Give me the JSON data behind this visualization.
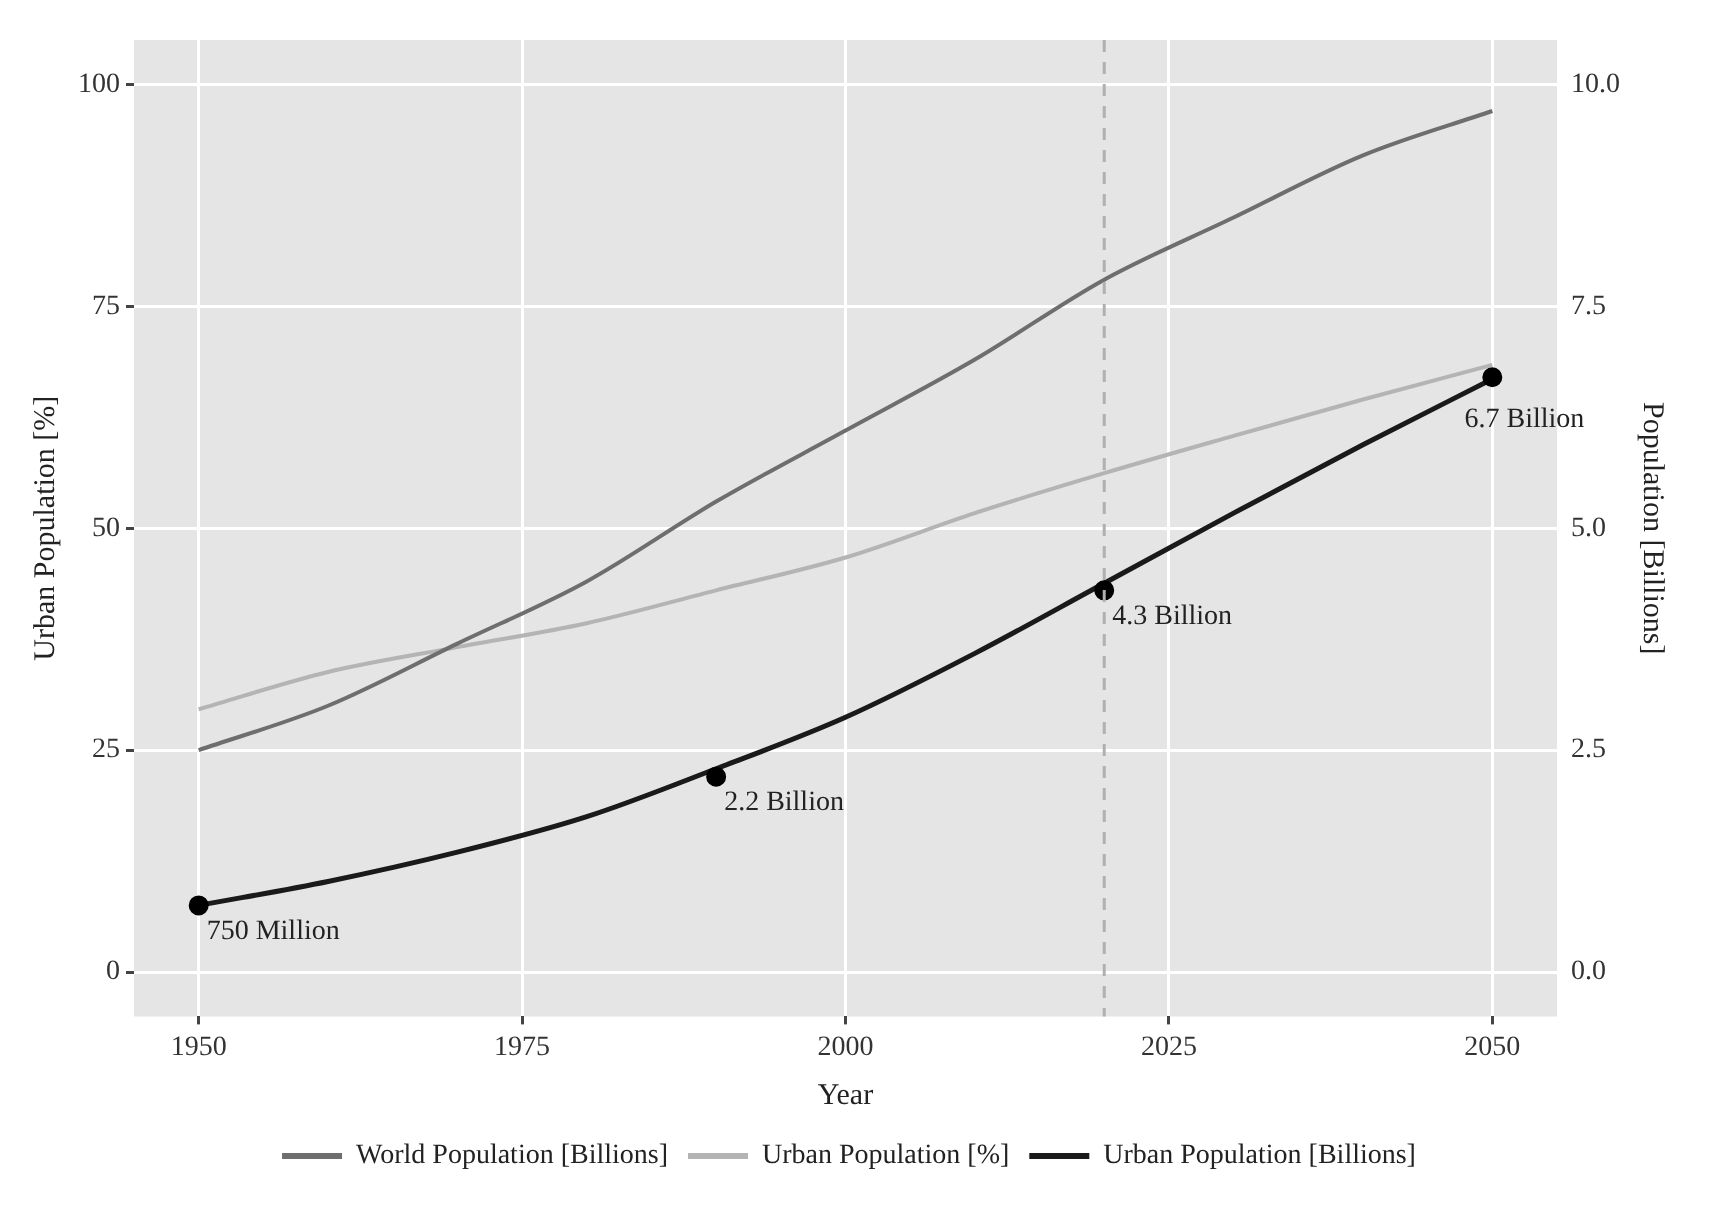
{
  "chart_data": {
    "type": "line",
    "xlabel": "Year",
    "ylabel": "Urban Population [%]",
    "y2label": "Population [Billions]",
    "xlim": [
      1945,
      2055
    ],
    "xticks": [
      1950,
      1975,
      2000,
      2025,
      2050
    ],
    "ylim": [
      -5,
      105
    ],
    "yticks": [
      0,
      25,
      50,
      75,
      100
    ],
    "y2lim": [
      -0.5,
      10.5
    ],
    "y2ticks": [
      {
        "value": 0,
        "label": "0.0"
      },
      {
        "value": 2.5,
        "label": "2.5"
      },
      {
        "value": 5,
        "label": "5.0"
      },
      {
        "value": 7.5,
        "label": "7.5"
      },
      {
        "value": 10,
        "label": "10.0"
      }
    ],
    "x": [
      1950,
      1960,
      1970,
      1980,
      1990,
      2000,
      2010,
      2020,
      2030,
      2040,
      2050
    ],
    "series": [
      {
        "name": "World Population [Billions]",
        "color": "#6e6e6e",
        "axis": "y2",
        "values": [
          2.5,
          3.0,
          3.7,
          4.4,
          5.3,
          6.1,
          6.9,
          7.8,
          8.5,
          9.2,
          9.7
        ]
      },
      {
        "name": "Urban Population [%]",
        "color": "#b4b4b4",
        "values": [
          29.6,
          33.8,
          36.6,
          39.3,
          43.0,
          46.7,
          51.7,
          56.2,
          60.4,
          64.5,
          68.4
        ]
      },
      {
        "name": "Urban Population [Billions]",
        "color": "#1a1a1a",
        "axis": "y2",
        "values": [
          0.75,
          1.02,
          1.35,
          1.75,
          2.29,
          2.87,
          3.59,
          4.38,
          5.17,
          5.94,
          6.68
        ]
      },
      {
        "type": "scatter",
        "color": "#000000",
        "axis": "y2",
        "marker": "circle",
        "x": [
          1950,
          1990,
          2020,
          2050
        ],
        "values": [
          0.75,
          2.2,
          4.3,
          6.7
        ]
      }
    ],
    "annotations": [
      "750 Million",
      "2.2 Billion",
      "4.3 Billion",
      "6.7 Billion"
    ],
    "ref_lines": [
      {
        "axis": "x",
        "value": 2020,
        "color": "#b0b0b0",
        "line_style": "dashed"
      }
    ],
    "grid": true,
    "legend": "bottom",
    "marker": "none",
    "line_style": "solid"
  }
}
